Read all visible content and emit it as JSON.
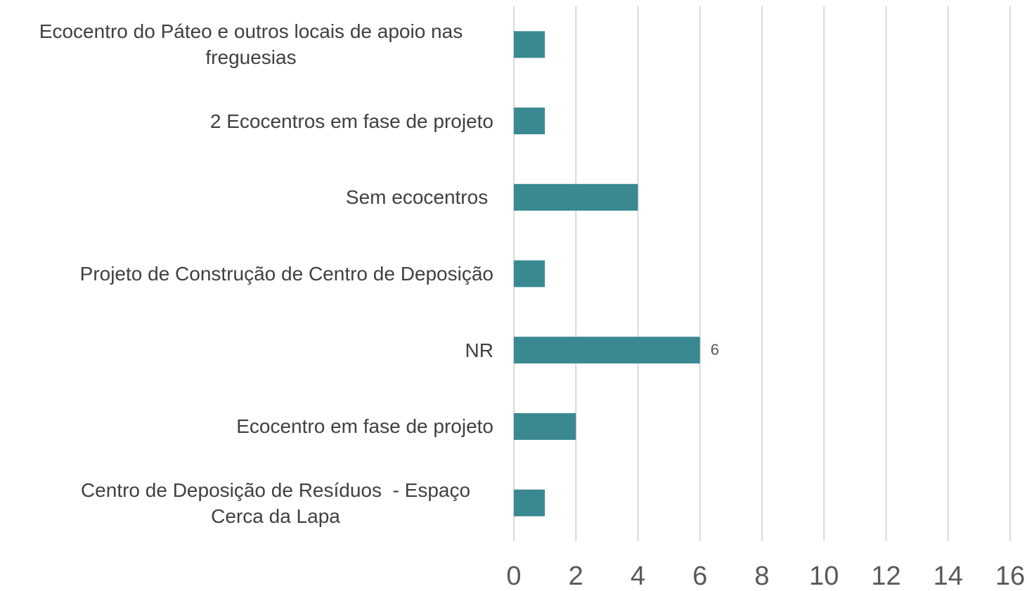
{
  "chart_data": {
    "type": "bar",
    "orientation": "horizontal",
    "categories": [
      "Ecocentro do Páteo e outros locais de apoio nas freguesias",
      "2 Ecocentros em fase de projeto",
      "Sem ecocentros ",
      "Projeto de Construção de Centro de Deposição",
      "NR",
      "Ecocentro em fase de projeto",
      "Centro de Deposição de Resíduos  - Espaço Cerca da Lapa"
    ],
    "values": [
      1,
      1,
      4,
      1,
      6,
      2,
      1
    ],
    "value_labels": [
      null,
      null,
      null,
      null,
      "6",
      null,
      null
    ],
    "color": "#3a8891",
    "xlim": [
      0,
      16
    ],
    "xticks": [
      0,
      2,
      4,
      6,
      8,
      10,
      12,
      14,
      16
    ],
    "grid": true
  }
}
